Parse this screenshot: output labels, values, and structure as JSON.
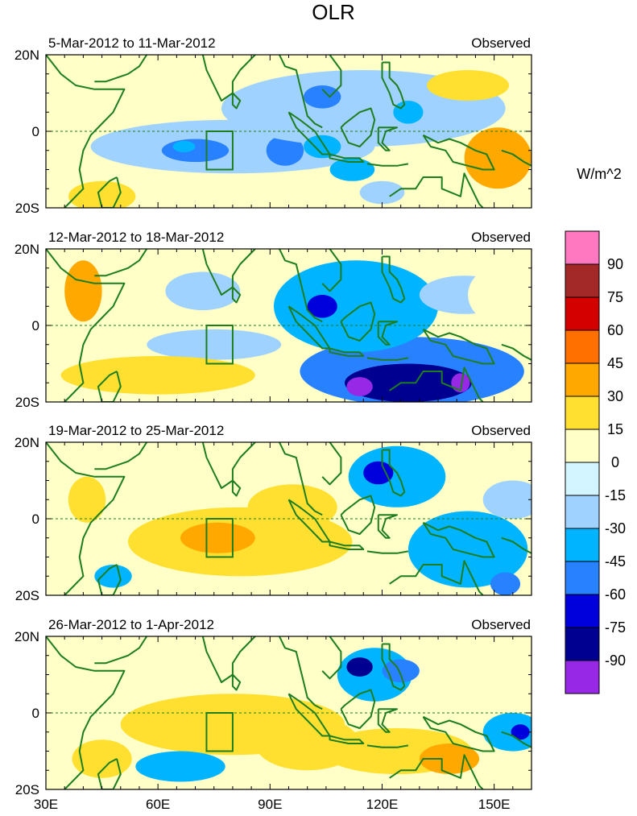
{
  "chart_data": {
    "type": "heatmap",
    "title": "OLR",
    "units_label": "W/m^2",
    "x_ticks": [
      {
        "value": 30,
        "label": "30E"
      },
      {
        "value": 60,
        "label": "60E"
      },
      {
        "value": 90,
        "label": "90E"
      },
      {
        "value": 120,
        "label": "120E"
      },
      {
        "value": 150,
        "label": "150E"
      }
    ],
    "y_ticks": [
      {
        "value": 20,
        "label": "20N"
      },
      {
        "value": 0,
        "label": "0"
      },
      {
        "value": -20,
        "label": "20S"
      }
    ],
    "xlim": [
      30,
      160
    ],
    "ylim": [
      -20,
      20
    ],
    "colorbar": {
      "levels": [
        "90",
        "75",
        "60",
        "45",
        "30",
        "15",
        "0",
        "-15",
        "-30",
        "-45",
        "-60",
        "-75",
        "-90"
      ],
      "colors": [
        "#ff78c0",
        "#a32828",
        "#d40000",
        "#ff7000",
        "#ffa800",
        "#ffe030",
        "#ffffc8",
        "#d2f5ff",
        "#a0d2ff",
        "#00b4ff",
        "#2882ff",
        "#0000dc",
        "#000090",
        "#9628e6"
      ]
    },
    "panels": [
      {
        "date_range": "5-Mar-2012 to 11-Mar-2012",
        "label": "Observed",
        "blobs": [
          {
            "x": 80,
            "y": -4,
            "rx": 38,
            "ry": 7,
            "v": -22
          },
          {
            "x": 70,
            "y": -5,
            "rx": 9,
            "ry": 3,
            "v": -45
          },
          {
            "x": 67,
            "y": -4,
            "rx": 3,
            "ry": 1.5,
            "v": -35
          },
          {
            "x": 94,
            "y": -5,
            "rx": 5,
            "ry": 4,
            "v": -45
          },
          {
            "x": 112,
            "y": -10,
            "rx": 6,
            "ry": 3,
            "v": -30
          },
          {
            "x": 115,
            "y": 6,
            "rx": 38,
            "ry": 10,
            "v": -25
          },
          {
            "x": 104,
            "y": 9,
            "rx": 5,
            "ry": 3,
            "v": -45
          },
          {
            "x": 127,
            "y": 5,
            "rx": 4,
            "ry": 3,
            "v": -40
          },
          {
            "x": 104,
            "y": -4,
            "rx": 5,
            "ry": 3,
            "v": -40
          },
          {
            "x": 151,
            "y": -7,
            "rx": 9,
            "ry": 8,
            "v": 38
          },
          {
            "x": 45,
            "y": -17,
            "rx": 9,
            "ry": 4,
            "v": 28
          },
          {
            "x": 143,
            "y": 12,
            "rx": 11,
            "ry": 4,
            "v": 18
          },
          {
            "x": 38,
            "y": 11,
            "rx": 4,
            "ry": 6,
            "v": 14
          },
          {
            "x": 120,
            "y": -16,
            "rx": 6,
            "ry": 3,
            "v": -25
          }
        ]
      },
      {
        "date_range": "12-Mar-2012 to 18-Mar-2012",
        "label": "Observed",
        "blobs": [
          {
            "x": 128,
            "y": -12,
            "rx": 30,
            "ry": 9,
            "v": -45
          },
          {
            "x": 127,
            "y": -15,
            "rx": 17,
            "ry": 5,
            "v": -75
          },
          {
            "x": 114,
            "y": -16,
            "rx": 3.5,
            "ry": 2.5,
            "v": -95
          },
          {
            "x": 141,
            "y": -15,
            "rx": 2.5,
            "ry": 2.5,
            "v": -95
          },
          {
            "x": 113,
            "y": 5,
            "rx": 22,
            "ry": 12,
            "v": -30
          },
          {
            "x": 104,
            "y": 5,
            "rx": 4,
            "ry": 3,
            "v": -60
          },
          {
            "x": 142,
            "y": 8,
            "rx": 12,
            "ry": 5,
            "v": -28
          },
          {
            "x": 75,
            "y": -5,
            "rx": 18,
            "ry": 4,
            "v": -18
          },
          {
            "x": 72,
            "y": 9,
            "rx": 10,
            "ry": 5,
            "v": -15
          },
          {
            "x": 40,
            "y": 9,
            "rx": 5,
            "ry": 8,
            "v": 33
          },
          {
            "x": 60,
            "y": -13,
            "rx": 26,
            "ry": 5,
            "v": 22
          },
          {
            "x": 153,
            "y": 8,
            "rx": 10,
            "ry": 8,
            "v": 15
          }
        ]
      },
      {
        "date_range": "19-Mar-2012 to 25-Mar-2012",
        "label": "Observed",
        "blobs": [
          {
            "x": 82,
            "y": -6,
            "rx": 30,
            "ry": 9,
            "v": 25
          },
          {
            "x": 76,
            "y": -5,
            "rx": 10,
            "ry": 4,
            "v": 32
          },
          {
            "x": 96,
            "y": 3,
            "rx": 12,
            "ry": 6,
            "v": 22
          },
          {
            "x": 124,
            "y": 11,
            "rx": 13,
            "ry": 8,
            "v": -38
          },
          {
            "x": 119,
            "y": 12,
            "rx": 4,
            "ry": 3,
            "v": -65
          },
          {
            "x": 143,
            "y": -8,
            "rx": 16,
            "ry": 10,
            "v": -32
          },
          {
            "x": 153,
            "y": -17,
            "rx": 4,
            "ry": 3,
            "v": -50
          },
          {
            "x": 41,
            "y": 5,
            "rx": 5,
            "ry": 6,
            "v": 20
          },
          {
            "x": 48,
            "y": -15,
            "rx": 5,
            "ry": 3,
            "v": -35
          },
          {
            "x": 155,
            "y": 5,
            "rx": 8,
            "ry": 5,
            "v": -15
          }
        ]
      },
      {
        "date_range": "26-Mar-2012 to 1-Apr-2012",
        "label": "Observed",
        "blobs": [
          {
            "x": 72,
            "y": -4,
            "rx": 16,
            "ry": 5,
            "v": 28
          },
          {
            "x": 80,
            "y": -3,
            "rx": 30,
            "ry": 8,
            "v": 17
          },
          {
            "x": 118,
            "y": 10,
            "rx": 10,
            "ry": 7,
            "v": -40
          },
          {
            "x": 114,
            "y": 12,
            "rx": 3.5,
            "ry": 2.5,
            "v": -85
          },
          {
            "x": 125,
            "y": 11,
            "rx": 5,
            "ry": 3,
            "v": -50
          },
          {
            "x": 66,
            "y": -14,
            "rx": 12,
            "ry": 4,
            "v": -35
          },
          {
            "x": 155,
            "y": -5,
            "rx": 8,
            "ry": 5,
            "v": -40
          },
          {
            "x": 157,
            "y": -5,
            "rx": 2.5,
            "ry": 2,
            "v": -65
          },
          {
            "x": 124,
            "y": -10,
            "rx": 20,
            "ry": 6,
            "v": 20
          },
          {
            "x": 138,
            "y": -12,
            "rx": 8,
            "ry": 4,
            "v": 34
          },
          {
            "x": 100,
            "y": -8,
            "rx": 14,
            "ry": 7,
            "v": 17
          },
          {
            "x": 45,
            "y": -12,
            "rx": 8,
            "ry": 5,
            "v": 16
          }
        ]
      }
    ]
  }
}
